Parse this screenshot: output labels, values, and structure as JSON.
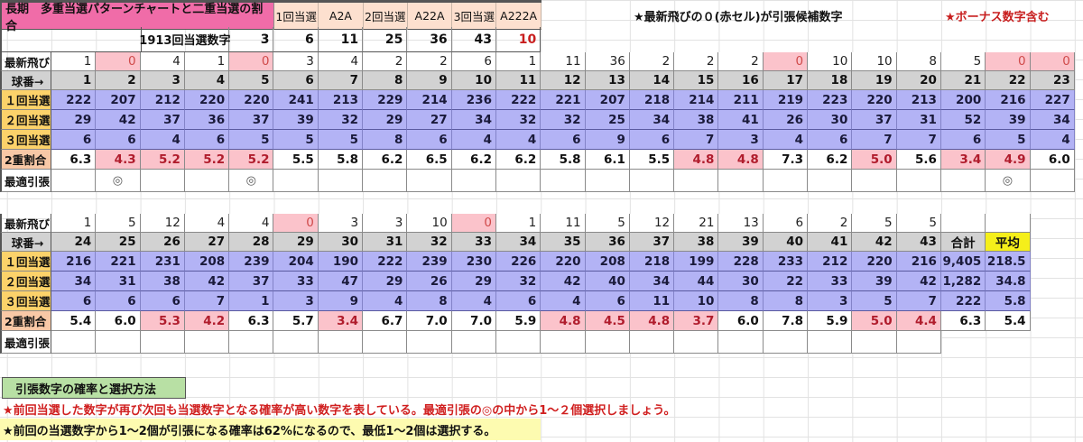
{
  "header": {
    "title": "長期　多重当選パターンチャートと二重当選の割合",
    "patterns": [
      "1回当選",
      "A2A",
      "2回当選",
      "A22A",
      "3回当選",
      "A222A"
    ],
    "note_candidate": "★最新飛びの０(赤セル)が引張候補数字",
    "note_bonus": "★ボーナス数字含む"
  },
  "draw": {
    "label": "1913回当選数字",
    "numbers": [
      "3",
      "6",
      "11",
      "25",
      "36",
      "43"
    ],
    "bonus": "10"
  },
  "colors": {
    "title_bg": "#f06ca8",
    "pattern_bg": "#fde0cf",
    "zero_bg": "#fbc3cb",
    "ball_bg": "#d2d2d2",
    "win_bg": "#b3b3f5",
    "win_header_bg": "#fcd26a",
    "ratio_header_bg": "#f8c8a6",
    "avg_bg": "#f5ef1a",
    "section_bg": "#b8e0a4",
    "red_text": "#c81e1e"
  },
  "row_labels": {
    "skip": "最新飛び",
    "ball": "球番→",
    "win1": "１回当選",
    "win2": "２回当選",
    "win3": "３回当選",
    "ratio": "2重割合",
    "best": "最適引張"
  },
  "table1": {
    "skip": [
      "1",
      "0",
      "4",
      "1",
      "0",
      "3",
      "4",
      "2",
      "2",
      "6",
      "1",
      "11",
      "36",
      "2",
      "2",
      "2",
      "0",
      "10",
      "10",
      "8",
      "5",
      "0",
      "0"
    ],
    "ball": [
      "1",
      "2",
      "3",
      "4",
      "5",
      "6",
      "7",
      "8",
      "9",
      "10",
      "11",
      "12",
      "13",
      "14",
      "15",
      "16",
      "17",
      "18",
      "19",
      "20",
      "21",
      "22",
      "23"
    ],
    "win1": [
      "222",
      "207",
      "212",
      "220",
      "220",
      "241",
      "213",
      "229",
      "214",
      "236",
      "222",
      "221",
      "207",
      "218",
      "214",
      "211",
      "219",
      "223",
      "220",
      "213",
      "200",
      "216",
      "227"
    ],
    "win2": [
      "29",
      "42",
      "37",
      "36",
      "37",
      "39",
      "32",
      "29",
      "27",
      "34",
      "32",
      "32",
      "25",
      "34",
      "38",
      "41",
      "26",
      "30",
      "37",
      "31",
      "52",
      "39",
      "34"
    ],
    "win3": [
      "6",
      "6",
      "4",
      "6",
      "5",
      "5",
      "5",
      "8",
      "6",
      "4",
      "4",
      "6",
      "9",
      "6",
      "7",
      "3",
      "4",
      "6",
      "7",
      "7",
      "6",
      "5",
      "4"
    ],
    "ratio": [
      "6.3",
      "4.3",
      "5.2",
      "5.2",
      "5.2",
      "5.5",
      "5.8",
      "6.2",
      "6.5",
      "6.2",
      "6.2",
      "5.8",
      "6.1",
      "5.5",
      "4.8",
      "4.8",
      "7.3",
      "6.2",
      "5.0",
      "5.6",
      "3.4",
      "4.9",
      "6.0"
    ],
    "ratio_low": [
      false,
      true,
      true,
      true,
      true,
      false,
      false,
      false,
      false,
      false,
      false,
      false,
      false,
      false,
      true,
      true,
      false,
      false,
      true,
      false,
      true,
      true,
      false
    ],
    "best": [
      "",
      "◎",
      "",
      "",
      "◎",
      "",
      "",
      "",
      "",
      "",
      "",
      "",
      "",
      "",
      "",
      "",
      "",
      "",
      "",
      "",
      "",
      "◎",
      ""
    ]
  },
  "table2": {
    "skip": [
      "1",
      "5",
      "12",
      "4",
      "4",
      "0",
      "3",
      "3",
      "10",
      "0",
      "1",
      "11",
      "5",
      "12",
      "21",
      "13",
      "6",
      "2",
      "5",
      "5",
      "",
      ""
    ],
    "ball": [
      "24",
      "25",
      "26",
      "27",
      "28",
      "29",
      "30",
      "31",
      "32",
      "33",
      "34",
      "35",
      "36",
      "37",
      "38",
      "39",
      "40",
      "41",
      "42",
      "43",
      "合計",
      "平均"
    ],
    "win1": [
      "216",
      "221",
      "231",
      "208",
      "239",
      "204",
      "190",
      "222",
      "239",
      "230",
      "226",
      "220",
      "208",
      "218",
      "199",
      "228",
      "233",
      "212",
      "220",
      "216",
      "9,405",
      "218.5"
    ],
    "win2": [
      "34",
      "31",
      "38",
      "42",
      "37",
      "33",
      "47",
      "29",
      "26",
      "29",
      "32",
      "42",
      "40",
      "34",
      "44",
      "30",
      "22",
      "33",
      "39",
      "42",
      "1,282",
      "34.8"
    ],
    "win3": [
      "6",
      "6",
      "6",
      "7",
      "1",
      "3",
      "9",
      "4",
      "8",
      "4",
      "6",
      "4",
      "6",
      "11",
      "10",
      "8",
      "8",
      "3",
      "5",
      "7",
      "222",
      "5.8"
    ],
    "ratio": [
      "5.4",
      "6.0",
      "5.3",
      "4.2",
      "6.3",
      "5.7",
      "3.4",
      "6.7",
      "7.0",
      "7.0",
      "5.9",
      "4.8",
      "4.5",
      "4.8",
      "3.7",
      "6.0",
      "7.8",
      "5.9",
      "5.0",
      "4.4",
      "6.3",
      "5.4"
    ],
    "ratio_low": [
      false,
      false,
      true,
      true,
      false,
      false,
      true,
      false,
      false,
      false,
      false,
      true,
      true,
      true,
      true,
      false,
      false,
      false,
      true,
      true,
      false,
      false
    ],
    "best": [
      "",
      "",
      "",
      "",
      "",
      "",
      "",
      "",
      "",
      "",
      "",
      "",
      "",
      "",
      "",
      "",
      "",
      "",
      "",
      "",
      "",
      ""
    ]
  },
  "notes": {
    "section_title": "引張数字の確率と選択方法",
    "note1": "★前回当選した数字が再び次回も当選数字となる確率が高い数字を表している。最適引張の◎の中から1～２個選択しましょう。",
    "note2": "★前回の当選数字から1～2個が引張になる確率は62%になるので、最低1～2個は選択する。"
  }
}
